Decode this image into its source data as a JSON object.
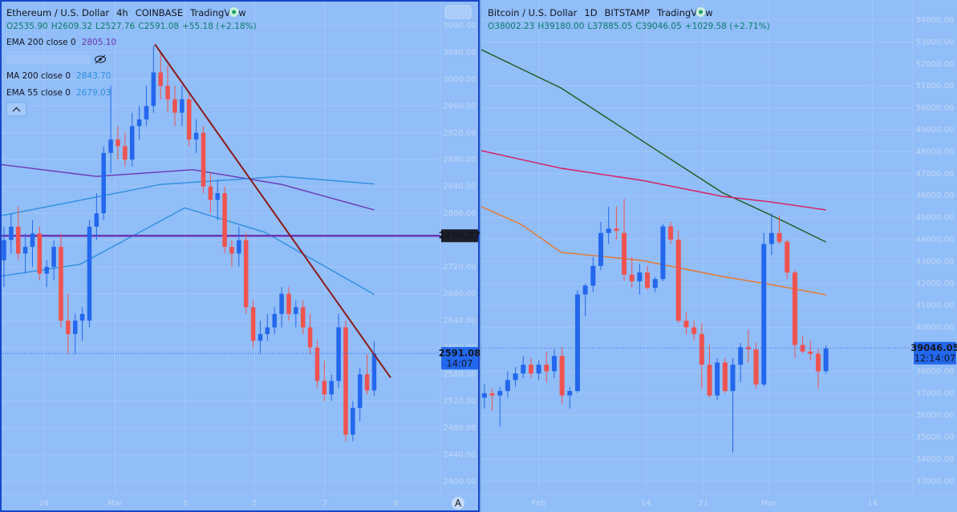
{
  "chart_data": [
    {
      "type": "candlestick",
      "title": "Ethereum / U.S. Dollar",
      "interval": "4h",
      "exchange": "COINBASE",
      "source": "TradingView",
      "ohlc": [
        "O2535.90",
        "H2609.32",
        "L2527.76",
        "C2591.08",
        "+55.18 (+2.18%)"
      ],
      "candles": {
        "open": [
          2730,
          2760,
          2780,
          2740,
          2750,
          2770,
          2710,
          2720,
          2750,
          2640,
          2620,
          2640,
          2640,
          2780,
          2800,
          2890,
          2910,
          2900,
          2880,
          2930,
          2940,
          2960,
          3010,
          2990,
          2970,
          2950,
          2970,
          2910,
          2920,
          2840,
          2820,
          2830,
          2750,
          2740,
          2760,
          2660,
          2610,
          2620,
          2630,
          2650,
          2680,
          2650,
          2660,
          2630,
          2600,
          2550,
          2530,
          2550,
          2630,
          2470,
          2510,
          2560,
          2535.9
        ],
        "high": [
          2780,
          2800,
          2810,
          2770,
          2790,
          2780,
          2730,
          2760,
          2770,
          2680,
          2650,
          2660,
          2790,
          2830,
          2900,
          2990,
          2930,
          2920,
          2950,
          2960,
          2990,
          3050,
          3040,
          3020,
          2990,
          2990,
          2980,
          2940,
          2930,
          2860,
          2850,
          2840,
          2760,
          2780,
          2770,
          2670,
          2640,
          2650,
          2660,
          2690,
          2690,
          2670,
          2670,
          2650,
          2610,
          2580,
          2560,
          2650,
          2640,
          2520,
          2570,
          2590,
          2609.32
        ],
        "low": [
          2690,
          2740,
          2730,
          2710,
          2720,
          2700,
          2690,
          2700,
          2630,
          2590,
          2590,
          2610,
          2630,
          2760,
          2790,
          2860,
          2880,
          2870,
          2870,
          2910,
          2930,
          2950,
          2970,
          2950,
          2930,
          2930,
          2900,
          2890,
          2830,
          2800,
          2790,
          2740,
          2720,
          2720,
          2650,
          2600,
          2590,
          2610,
          2620,
          2630,
          2640,
          2630,
          2620,
          2590,
          2540,
          2520,
          2520,
          2540,
          2460,
          2460,
          2490,
          2530,
          2527.76
        ],
        "close": [
          2760,
          2780,
          2740,
          2750,
          2770,
          2710,
          2720,
          2750,
          2640,
          2620,
          2640,
          2650,
          2780,
          2800,
          2890,
          2910,
          2900,
          2880,
          2930,
          2940,
          2960,
          3010,
          2990,
          2970,
          2950,
          2970,
          2910,
          2920,
          2840,
          2820,
          2830,
          2750,
          2740,
          2760,
          2660,
          2610,
          2620,
          2630,
          2650,
          2680,
          2650,
          2660,
          2630,
          2600,
          2550,
          2530,
          2550,
          2630,
          2470,
          2510,
          2560,
          2535.9,
          2591.08
        ]
      },
      "up_color": "#2367ee",
      "down_color": "#ef5350",
      "series": [
        {
          "name": "EMA 200 close 0",
          "last_label": "2805.10",
          "color": "#6a35b5",
          "x": [
            -0.6,
            13,
            26.5,
            39,
            52
          ],
          "values": [
            2873,
            2855,
            2865,
            2843,
            2805
          ]
        },
        {
          "name": "MA 200 close 0",
          "last_label": "2843.70",
          "color": "#2f8fe0",
          "x": [
            -0.6,
            22,
            39,
            52
          ],
          "values": [
            2796,
            2843,
            2855,
            2843.7
          ]
        },
        {
          "name": "EMA 55 close 0",
          "last_label": "2679.03",
          "color": "#2f8fe0",
          "x": [
            -0.6,
            10.7,
            25.4,
            36.6,
            52
          ],
          "values": [
            2706,
            2724,
            2808,
            2772,
            2679.03
          ]
        }
      ],
      "trend_line": {
        "color": "#8b1a1a",
        "x": [
          21.2,
          54.3
        ],
        "values": [
          3052,
          2555
        ]
      },
      "hline": 2766.57,
      "hline_color": "#6a35b5",
      "last_price": 2591.08,
      "countdown": "14:07",
      "xlim": [
        -0.56,
        61.3
      ],
      "ylim": [
        2381,
        3118
      ],
      "xticks": [
        {
          "value": 5.6,
          "label": "26"
        },
        {
          "value": 15.6,
          "label": "Mar"
        },
        {
          "value": 25.4,
          "label": "3"
        },
        {
          "value": 35.2,
          "label": "5"
        },
        {
          "value": 45.1,
          "label": "7"
        },
        {
          "value": 55.0,
          "label": "9"
        }
      ],
      "yticks": [
        {
          "value": 2400,
          "label": "2400.00"
        },
        {
          "value": 2440,
          "label": "2440.00"
        },
        {
          "value": 2480,
          "label": "2480.00"
        },
        {
          "value": 2520,
          "label": "2520.00"
        },
        {
          "value": 2560,
          "label": "2560.00"
        },
        {
          "value": 2600,
          "label": "2600.00"
        },
        {
          "value": 2640,
          "label": "2640.00"
        },
        {
          "value": 2680,
          "label": "2680.00"
        },
        {
          "value": 2720,
          "label": "2720.00"
        },
        {
          "value": 2760,
          "label": "2760.00"
        },
        {
          "value": 2800,
          "label": "2800.00"
        },
        {
          "value": 2840,
          "label": "2840.00"
        },
        {
          "value": 2880,
          "label": "2880.00"
        },
        {
          "value": 2920,
          "label": "2920.00"
        },
        {
          "value": 2960,
          "label": "2960.00"
        },
        {
          "value": 3000,
          "label": "3000.00"
        },
        {
          "value": 3040,
          "label": "3040.00"
        },
        {
          "value": 3080,
          "label": "3080.00"
        }
      ],
      "grid": true
    },
    {
      "type": "candlestick",
      "title": "Bitcoin / U.S. Dollar",
      "interval": "1D",
      "exchange": "BITSTAMP",
      "source": "TradingView",
      "ohlc": [
        "O38002.23",
        "H39180.00",
        "L37885.05",
        "C39046.05",
        "+1029.58 (+2.71%)"
      ],
      "candles": {
        "open": [
          36800,
          37000,
          36900,
          37100,
          37600,
          37900,
          38300,
          37900,
          38300,
          38000,
          38700,
          36900,
          37100,
          41500,
          41900,
          42800,
          44300,
          44500,
          44300,
          42400,
          42100,
          42500,
          41800,
          42200,
          44600,
          44000,
          40300,
          40000,
          39700,
          38300,
          36900,
          38400,
          37100,
          38300,
          39100,
          39000,
          37400,
          43800,
          44300,
          43900,
          42500,
          39200,
          38900,
          38800,
          38002.23
        ],
        "high": [
          37400,
          37200,
          37300,
          38000,
          38200,
          38700,
          38600,
          38500,
          38900,
          39000,
          39100,
          37300,
          41700,
          42000,
          43200,
          44800,
          45500,
          45500,
          45860,
          43200,
          42900,
          42800,
          42300,
          44700,
          44800,
          44400,
          40700,
          40300,
          40200,
          39200,
          38600,
          38600,
          38600,
          39300,
          39900,
          39300,
          44300,
          45200,
          45100,
          44000,
          42600,
          39600,
          39400,
          39000,
          39180
        ],
        "low": [
          36300,
          36200,
          35500,
          36800,
          37300,
          37700,
          37700,
          37600,
          37500,
          37700,
          36500,
          36300,
          37000,
          40500,
          41600,
          42600,
          43800,
          44000,
          42100,
          41800,
          41500,
          41700,
          41600,
          42100,
          43800,
          40200,
          39700,
          39400,
          37200,
          36800,
          36700,
          37000,
          34300,
          37500,
          38400,
          37200,
          37300,
          43300,
          43800,
          42200,
          38600,
          38800,
          38500,
          37200,
          37885.05
        ],
        "close": [
          37000,
          36900,
          37100,
          37600,
          37900,
          38300,
          37900,
          38300,
          38000,
          38700,
          36900,
          37100,
          41500,
          41900,
          42800,
          44300,
          44500,
          44400,
          42400,
          42100,
          42500,
          41800,
          42200,
          44600,
          44000,
          40300,
          40000,
          39700,
          38300,
          36900,
          38400,
          37100,
          38300,
          39100,
          39000,
          37400,
          43800,
          44300,
          43900,
          42500,
          39200,
          38900,
          38800,
          38000,
          39046.05
        ]
      },
      "up_color": "#2367ee",
      "down_color": "#ef5350",
      "series": [
        {
          "color": "#1e5a1e",
          "x": [
            -0.4,
            9.9,
            20.2,
            30.6,
            36.8,
            44
          ],
          "values": [
            52650,
            50900,
            48530,
            46150,
            45130,
            43890
          ]
        },
        {
          "color": "#d81b60",
          "x": [
            -0.4,
            9.9,
            20.2,
            30.6,
            36.8,
            44
          ],
          "values": [
            48050,
            47250,
            46700,
            45970,
            45720,
            45350
          ]
        },
        {
          "color": "#e8782a",
          "x": [
            -0.4,
            4.75,
            9.9,
            20.2,
            30.6,
            36.8,
            44
          ],
          "values": [
            45500,
            44690,
            43420,
            43050,
            42320,
            41960,
            41480
          ]
        }
      ],
      "last_price": 39046.05,
      "countdown": "12:14:07",
      "xlim": [
        -0.4,
        55.2
      ],
      "ylim": [
        32393,
        54914
      ],
      "xticks": [
        {
          "value": 7.0,
          "label": "Feb"
        },
        {
          "value": 20.8,
          "label": "14"
        },
        {
          "value": 28.2,
          "label": "21"
        },
        {
          "value": 36.6,
          "label": "Mar"
        },
        {
          "value": 50.0,
          "label": "14"
        }
      ],
      "yticks": [
        {
          "value": 33000,
          "label": "33000.00"
        },
        {
          "value": 34000,
          "label": "34000.00"
        },
        {
          "value": 35000,
          "label": "35000.00"
        },
        {
          "value": 36000,
          "label": "36000.00"
        },
        {
          "value": 37000,
          "label": "37000.00"
        },
        {
          "value": 38000,
          "label": "38000.00"
        },
        {
          "value": 39000,
          "label": "39000.00"
        },
        {
          "value": 40000,
          "label": "40000.00"
        },
        {
          "value": 41000,
          "label": "41000.00"
        },
        {
          "value": 42000,
          "label": "42000.00"
        },
        {
          "value": 43000,
          "label": "43000.00"
        },
        {
          "value": 44000,
          "label": "44000.00"
        },
        {
          "value": 45000,
          "label": "45000.00"
        },
        {
          "value": 46000,
          "label": "46000.00"
        },
        {
          "value": 47000,
          "label": "47000.00"
        },
        {
          "value": 48000,
          "label": "48000.00"
        },
        {
          "value": 49000,
          "label": "49000.00"
        },
        {
          "value": 50000,
          "label": "50000.00"
        },
        {
          "value": 51000,
          "label": "51000.00"
        },
        {
          "value": 52000,
          "label": "52000.00"
        },
        {
          "value": 53000,
          "label": "53000.00"
        },
        {
          "value": 54000,
          "label": "54000.00"
        }
      ],
      "grid": true
    }
  ]
}
